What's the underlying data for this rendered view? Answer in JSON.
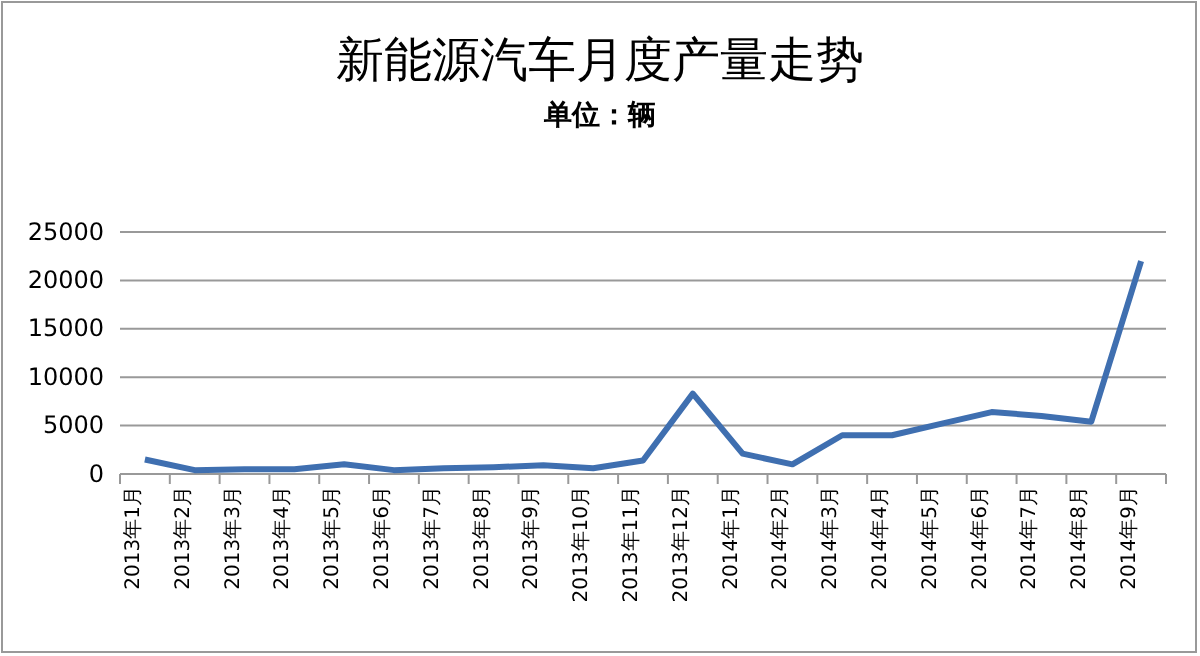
{
  "chart_data": {
    "type": "line",
    "title": "新能源汽车月度产量走势",
    "subtitle": "单位：辆",
    "categories": [
      "2013年1月",
      "2013年2月",
      "2013年3月",
      "2013年4月",
      "2013年5月",
      "2013年6月",
      "2013年7月",
      "2013年8月",
      "2013年9月",
      "2013年10月",
      "2013年11月",
      "2013年12月",
      "2014年1月",
      "2014年2月",
      "2014年3月",
      "2014年4月",
      "2014年5月",
      "2014年6月",
      "2014年7月",
      "2014年8月",
      "2014年9月"
    ],
    "series": [
      {
        "color": "#3f6fb0",
        "values": [
          1500,
          400,
          500,
          500,
          1000,
          400,
          600,
          700,
          900,
          600,
          1400,
          8300,
          2100,
          1000,
          4000,
          4000,
          5200,
          6400,
          6000,
          5400,
          22000
        ]
      }
    ],
    "ylim": [
      0,
      25000
    ],
    "yticks": [
      0,
      5000,
      10000,
      15000,
      20000,
      25000
    ],
    "grid": "y",
    "marker": "none",
    "line_style": "solid"
  }
}
